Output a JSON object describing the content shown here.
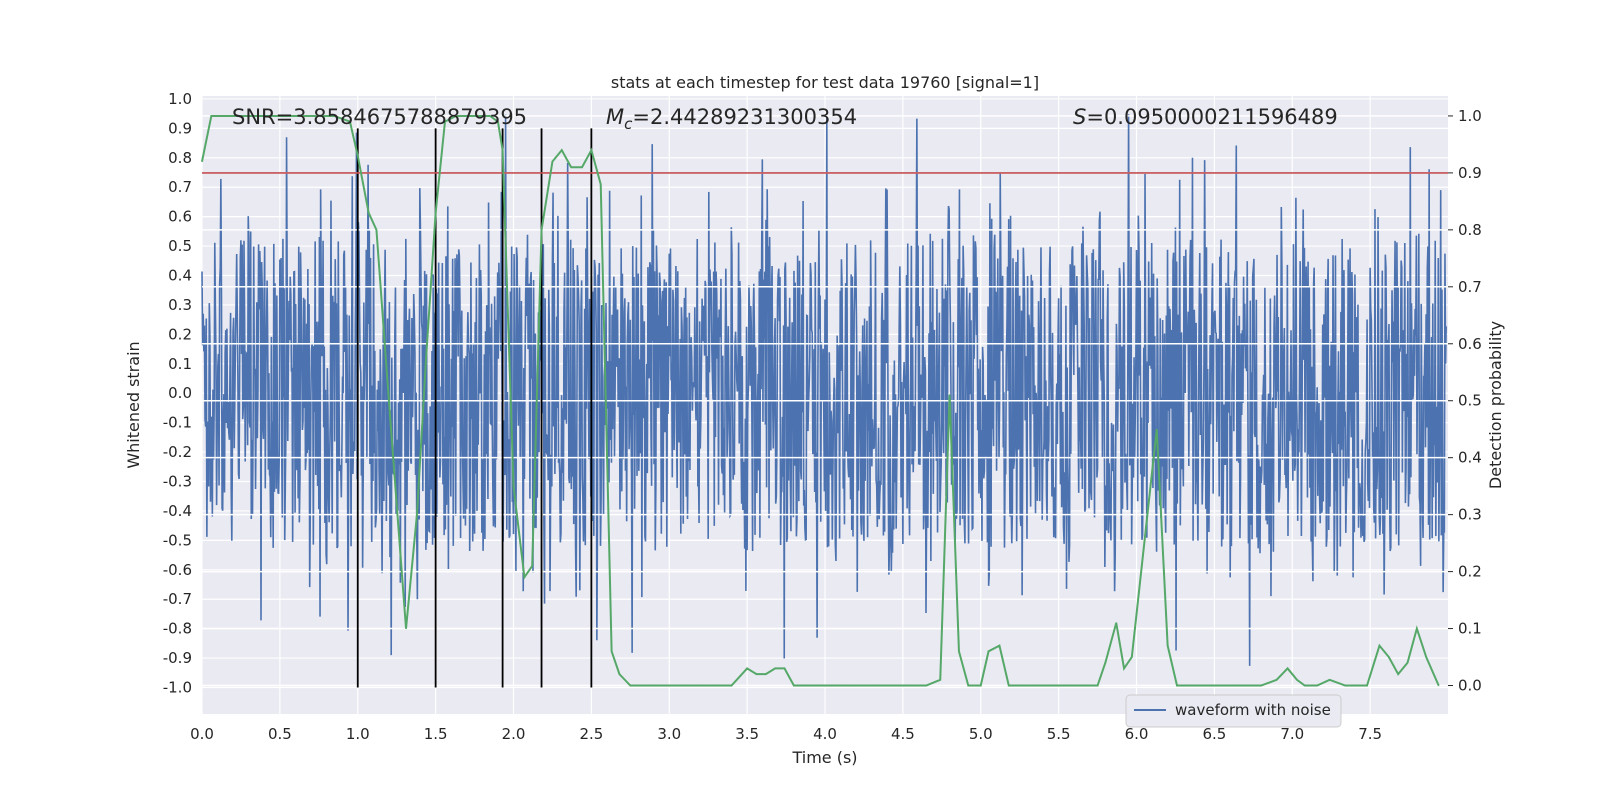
{
  "chart_data": {
    "type": "line",
    "title": "stats at each timestep for test data 19760 [signal=1]",
    "xlabel": "Time (s)",
    "ylabel_left": "Whitened strain",
    "ylabel_right": "Detection probability",
    "xlim": [
      0.0,
      8.0
    ],
    "ylim_left": [
      -1.09,
      1.01
    ],
    "ylim_right": [
      -0.05,
      1.035
    ],
    "x_ticks": [
      "0.0",
      "0.5",
      "1.0",
      "1.5",
      "2.0",
      "2.5",
      "3.0",
      "3.5",
      "4.0",
      "4.5",
      "5.0",
      "5.5",
      "6.0",
      "6.5",
      "7.0",
      "7.5"
    ],
    "y_ticks_left": [
      "1.0",
      "0.9",
      "0.8",
      "0.7",
      "0.6",
      "0.5",
      "0.4",
      "0.3",
      "0.2",
      "0.1",
      "0.0",
      "-0.1",
      "-0.2",
      "-0.3",
      "-0.4",
      "-0.5",
      "-0.6",
      "-0.7",
      "-0.8",
      "-0.9",
      "-1.0"
    ],
    "y_ticks_right": [
      "1.0",
      "0.9",
      "0.8",
      "0.7",
      "0.6",
      "0.5",
      "0.4",
      "0.3",
      "0.2",
      "0.1",
      "0.0"
    ],
    "annotations": {
      "snr": "SNR=3.8584675788879395",
      "mc_symbol": "M",
      "mc_sub": "c",
      "mc_value": "=2.44289231300354",
      "s_symbol": "S",
      "s_value": "=0.0950000211596489"
    },
    "threshold": 0.9,
    "vertical_lines_x": [
      1.0,
      1.5,
      1.93,
      2.18,
      2.5
    ],
    "vertical_lines_ymax": 0.9,
    "series": [
      {
        "name": "waveform with noise",
        "axis": "left",
        "color": "#4c72b0",
        "description": "dense noisy whitened strain, typical envelope +/-0.5, peaks to +/-0.95",
        "typical_amplitude": 0.5,
        "peak_amplitude": 0.95,
        "sample_rate_hz": 256
      },
      {
        "name": "detection probability",
        "axis": "right",
        "color": "#55a868",
        "x": [
          0.0,
          0.06,
          0.3,
          0.6,
          0.85,
          0.95,
          1.0,
          1.07,
          1.12,
          1.2,
          1.31,
          1.38,
          1.44,
          1.5,
          1.56,
          1.63,
          1.7,
          1.78,
          1.85,
          1.9,
          1.93,
          2.0,
          2.07,
          2.12,
          2.18,
          2.25,
          2.31,
          2.37,
          2.44,
          2.5,
          2.56,
          2.63,
          2.68,
          2.75,
          2.8,
          2.9,
          3.0,
          3.1,
          3.2,
          3.3,
          3.4,
          3.5,
          3.56,
          3.62,
          3.68,
          3.74,
          3.8,
          3.86,
          3.95,
          4.05,
          4.15,
          4.25,
          4.35,
          4.45,
          4.55,
          4.65,
          4.74,
          4.8,
          4.86,
          4.92,
          5.0,
          5.05,
          5.12,
          5.18,
          5.25,
          5.35,
          5.45,
          5.55,
          5.65,
          5.75,
          5.8,
          5.87,
          5.92,
          5.97,
          6.03,
          6.13,
          6.2,
          6.26,
          6.35,
          6.5,
          6.65,
          6.8,
          6.9,
          6.97,
          7.03,
          7.08,
          7.16,
          7.24,
          7.34,
          7.42,
          7.48,
          7.56,
          7.62,
          7.68,
          7.74,
          7.8,
          7.86,
          7.94
        ],
        "values": [
          0.92,
          1.0,
          1.0,
          1.0,
          1.0,
          0.99,
          0.93,
          0.83,
          0.8,
          0.5,
          0.1,
          0.3,
          0.58,
          0.83,
          0.99,
          1.0,
          1.0,
          1.0,
          1.0,
          0.99,
          0.94,
          0.35,
          0.19,
          0.21,
          0.8,
          0.92,
          0.94,
          0.91,
          0.91,
          0.94,
          0.88,
          0.06,
          0.02,
          0.0,
          0.0,
          0.0,
          0.0,
          0.0,
          0.0,
          0.0,
          0.0,
          0.03,
          0.02,
          0.02,
          0.03,
          0.03,
          0.0,
          0.0,
          0.0,
          0.0,
          0.0,
          0.0,
          0.0,
          0.0,
          0.0,
          0.0,
          0.01,
          0.51,
          0.06,
          0.0,
          0.0,
          0.06,
          0.07,
          0.0,
          0.0,
          0.0,
          0.0,
          0.0,
          0.0,
          0.0,
          0.04,
          0.11,
          0.03,
          0.05,
          0.2,
          0.45,
          0.07,
          0.0,
          0.0,
          0.0,
          0.0,
          0.0,
          0.01,
          0.03,
          0.01,
          0.0,
          0.0,
          0.01,
          0.0,
          0.0,
          0.0,
          0.07,
          0.05,
          0.02,
          0.04,
          0.1,
          0.05,
          0.0
        ]
      }
    ],
    "legend": {
      "placement": "bottom-right",
      "entries": [
        "waveform with noise"
      ]
    }
  }
}
